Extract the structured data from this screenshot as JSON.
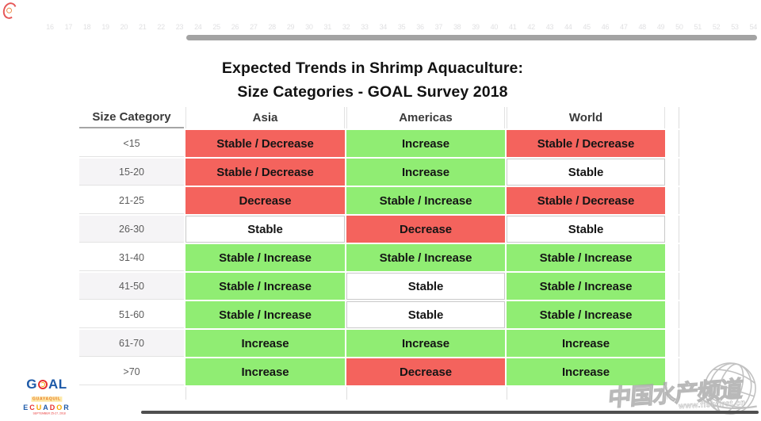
{
  "header": {
    "ruler_numbers": [
      16,
      17,
      18,
      19,
      20,
      21,
      22,
      23,
      24,
      25,
      26,
      27,
      28,
      29,
      30,
      31,
      32,
      33,
      34,
      35,
      36,
      37,
      38,
      39,
      40,
      41,
      42,
      43,
      44,
      45,
      46,
      47,
      48,
      49,
      50,
      51,
      52,
      53,
      54
    ]
  },
  "title": {
    "line1": "Expected Trends in Shrimp Aquaculture:",
    "line2": "Size Categories - GOAL Survey 2018"
  },
  "chart_data": {
    "type": "table",
    "title": "Expected Trends in Shrimp Aquaculture: Size Categories - GOAL Survey 2018",
    "columns": [
      "Size Category",
      "Asia",
      "Americas",
      "World"
    ],
    "rows": [
      [
        "<15",
        "Stable / Decrease",
        "Increase",
        "Stable / Decrease"
      ],
      [
        "15-20",
        "Stable / Decrease",
        "Increase",
        "Stable"
      ],
      [
        "21-25",
        "Decrease",
        "Stable / Increase",
        "Stable / Decrease"
      ],
      [
        "26-30",
        "Stable",
        "Decrease",
        "Stable"
      ],
      [
        "31-40",
        "Stable / Increase",
        "Stable / Increase",
        "Stable / Increase"
      ],
      [
        "41-50",
        "Stable / Increase",
        "Stable",
        "Stable / Increase"
      ],
      [
        "51-60",
        "Stable / Increase",
        "Stable",
        "Stable / Increase"
      ],
      [
        "61-70",
        "Increase",
        "Increase",
        "Increase"
      ],
      [
        ">70",
        "Increase",
        "Decrease",
        "Increase"
      ]
    ],
    "cell_states": [
      [
        "red",
        "green",
        "red"
      ],
      [
        "red",
        "green",
        "white"
      ],
      [
        "red",
        "green",
        "red"
      ],
      [
        "white",
        "red",
        "white"
      ],
      [
        "green",
        "green",
        "green"
      ],
      [
        "green",
        "white",
        "green"
      ],
      [
        "green",
        "white",
        "green"
      ],
      [
        "green",
        "green",
        "green"
      ],
      [
        "green",
        "red",
        "green"
      ]
    ]
  },
  "colors": {
    "red": "#f4635d",
    "green": "#90ed73",
    "white": "#ffffff",
    "cat_alt": "#f5f4f6",
    "scrollbar_top": "#a3a3a3",
    "scrollbar_bottom": "#4f4f4f"
  },
  "logo": {
    "word_start": "G",
    "word_end": "AL",
    "city": "GUAYAQUIL",
    "country": "ECUADOR",
    "date": "SEPTEMBER 25-27, 2018"
  },
  "watermark": {
    "text": "中国水产频道",
    "url": "www.fishfirst.cn"
  }
}
